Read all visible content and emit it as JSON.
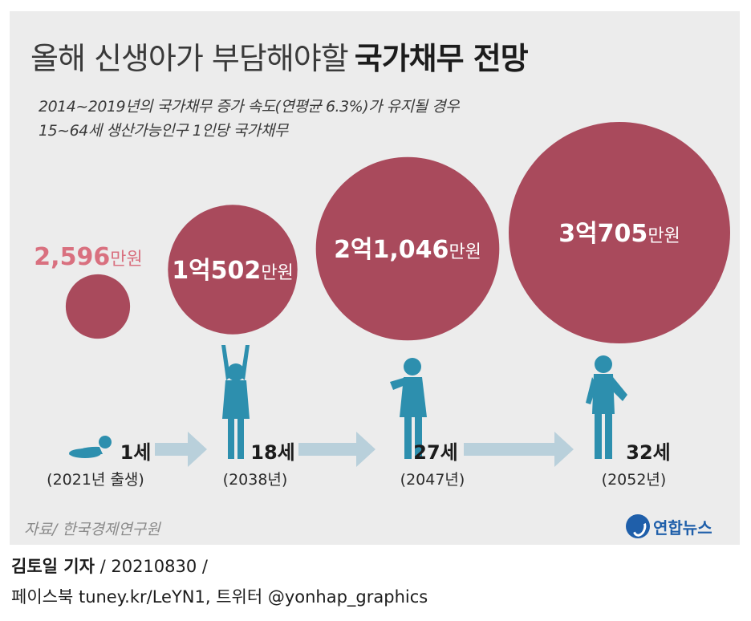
{
  "title": {
    "light": "올해 신생아가 부담해야할",
    "bold": "국가채무 전망"
  },
  "subtitle": {
    "line1": "2014~2019년의 국가채무 증가 속도(연평균 6.3%)가 유지될 경우",
    "line2": "15~64세 생산가능인구 1인당 국가채무"
  },
  "chart_data": {
    "type": "bubble",
    "title": "올해 신생아가 부담해야할 국가채무 전망",
    "points": [
      {
        "age": "1세",
        "year": "(2021년 출생)",
        "value_manwon": 2596,
        "label_num": "2,596",
        "label_unit": "만원",
        "figure": "baby"
      },
      {
        "age": "18세",
        "year": "(2038년)",
        "value_manwon": 10502,
        "label_num": "1억502",
        "label_unit": "만원",
        "figure": "child"
      },
      {
        "age": "27세",
        "year": "(2047년)",
        "value_manwon": 21046,
        "label_num": "2억1,046",
        "label_unit": "만원",
        "figure": "woman-reading"
      },
      {
        "age": "32세",
        "year": "(2052년)",
        "value_manwon": 30705,
        "label_num": "3억705",
        "label_unit": "만원",
        "figure": "woman-standing"
      }
    ]
  },
  "colors": {
    "bubble": "#a94a5c",
    "first_label": "#d9707f",
    "figure": "#2d8fae",
    "arrow": "#b9d0db",
    "panel": "#ececec"
  },
  "source": "자료/ 한국경제연구원",
  "logo": {
    "icon": "yonhap-logo-icon",
    "text": "연합뉴스"
  },
  "footer": {
    "reporter": "김토일 기자",
    "rest": " / 20210830 /",
    "line2": "페이스북 tuney.kr/LeYN1, 트위터 @yonhap_graphics"
  }
}
